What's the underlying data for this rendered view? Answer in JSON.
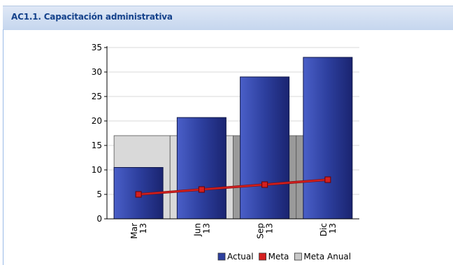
{
  "panel": {
    "title": "AC1.1. Capacitación administrativa"
  },
  "colors": {
    "actual": "#2d3f9e",
    "meta": "#d42020",
    "meta_anual": "#c8c8c8",
    "header_bg": "#d4e0f2",
    "title": "#15428b"
  },
  "chart_data": {
    "type": "bar",
    "categories": [
      "Mar 13",
      "Jun 13",
      "Sep 13",
      "Dic 13"
    ],
    "series": [
      {
        "name": "Actual",
        "type": "bar",
        "values": [
          10.5,
          20.7,
          29,
          33
        ]
      },
      {
        "name": "Meta",
        "type": "line",
        "values": [
          5,
          6,
          7,
          8
        ]
      },
      {
        "name": "Meta Anual",
        "type": "area",
        "values": [
          17,
          17,
          17,
          17
        ]
      }
    ],
    "ylim": [
      0,
      35
    ],
    "yticks": [
      0,
      5,
      10,
      15,
      20,
      25,
      30,
      35
    ],
    "grid": true,
    "legend": "bottom-right"
  }
}
